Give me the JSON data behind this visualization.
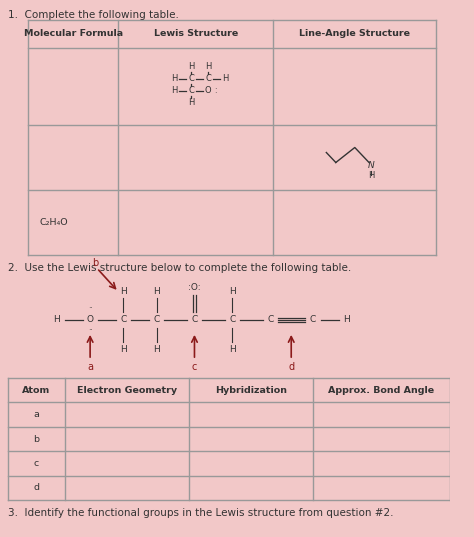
{
  "background_color": "#f2c8c8",
  "cell_color": "#f5d0d0",
  "title1": "1.  Complete the following table.",
  "title2": "2.  Use the Lewis structure below to complete the following table.",
  "title3": "3.  Identify the functional groups in the Lewis structure from question #2.",
  "table1_headers": [
    "Molecular Formula",
    "Lewis Structure",
    "Line-Angle Structure"
  ],
  "table2_headers": [
    "Atom",
    "Electron Geometry",
    "Hybridization",
    "Approx. Bond Angle"
  ],
  "table2_atoms": [
    "a",
    "b",
    "c",
    "d"
  ],
  "text_color": "#333333",
  "border_color": "#999999",
  "dark_red": "#8B1A1A",
  "font_size_title": 7.5,
  "font_size_header": 6.8,
  "font_size_atom": 6.5,
  "font_size_struct": 6.0
}
